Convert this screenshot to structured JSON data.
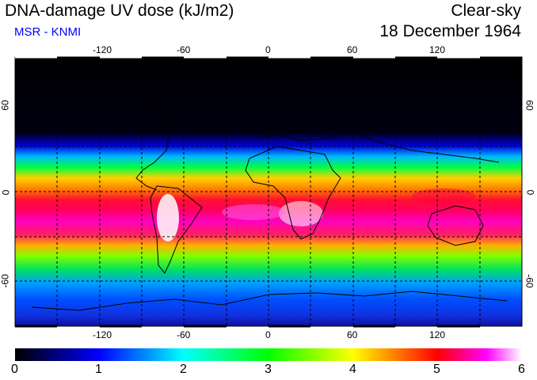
{
  "title": "DNA-damage UV dose (kJ/m2)",
  "subtitle": "MSR - KNMI",
  "condition": "Clear-sky",
  "date": "18 December 1964",
  "colors": {
    "subtitle": "#0000ff",
    "land_outline": "#000000",
    "ocean_background": "#000000"
  },
  "map": {
    "projection": "equirectangular",
    "lon_ticks": [
      "-120",
      "-60",
      "0",
      "60",
      "120"
    ],
    "lat_ticks_left": [
      "60",
      "0",
      "-60"
    ],
    "lat_ticks_right": [
      "60",
      "0",
      "-60"
    ],
    "grid": "dashed every 30 degrees"
  },
  "colorbar": {
    "min": 0,
    "max": 6,
    "labels": [
      "0",
      "1",
      "2",
      "3",
      "4",
      "5",
      "6"
    ],
    "stops": [
      "#000000",
      "#0000ff",
      "#00ffff",
      "#00ff00",
      "#ffff00",
      "#ff0000",
      "#ff00ff",
      "#ffffff"
    ]
  }
}
